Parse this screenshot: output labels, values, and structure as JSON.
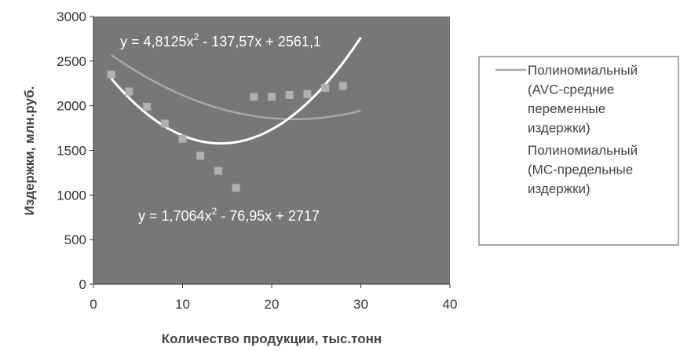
{
  "chart_data": {
    "type": "scatter",
    "title": "",
    "xlabel": "Количество продукции, тыс.тонн",
    "ylabel": "Издержки, млн.руб.",
    "xlim": [
      0,
      40
    ],
    "ylim": [
      0,
      3000
    ],
    "x_ticks": [
      "0",
      "10",
      "20",
      "30",
      "40"
    ],
    "y_ticks": [
      "0",
      "500",
      "1000",
      "1500",
      "2000",
      "2500",
      "3000"
    ],
    "grid": false,
    "plot_background": "#777777",
    "scatter_series": [
      {
        "color": "#b0b0b0",
        "points": [
          {
            "x": 2,
            "y": 2350
          },
          {
            "x": 4,
            "y": 2160
          },
          {
            "x": 6,
            "y": 1990
          },
          {
            "x": 8,
            "y": 1800
          },
          {
            "x": 10,
            "y": 1630
          },
          {
            "x": 12,
            "y": 1440
          },
          {
            "x": 14,
            "y": 1270
          },
          {
            "x": 16,
            "y": 1080
          },
          {
            "x": 18,
            "y": 2100
          },
          {
            "x": 20,
            "y": 2100
          },
          {
            "x": 22,
            "y": 2120
          },
          {
            "x": 24,
            "y": 2130
          },
          {
            "x": 26,
            "y": 2200
          },
          {
            "x": 28,
            "y": 2220
          }
        ]
      }
    ],
    "trendlines": [
      {
        "name": "Полиномиальный (AVC-средние переменные издержки)",
        "color": "#a8a8a8",
        "coefficients": {
          "a": 1.7064,
          "b": -76.95,
          "c": 2717
        },
        "x_range": [
          2,
          30
        ],
        "equation": "y = 1,7064x² - 76,95x + 2717"
      },
      {
        "name": "Полиномиальный (MC-предельные издержки)",
        "color": "#ffffff",
        "coefficients": {
          "a": 4.8125,
          "b": -137.57,
          "c": 2561.1
        },
        "x_range": [
          2,
          30
        ],
        "equation": "y = 4,8125x² - 137,57x + 2561,1"
      }
    ],
    "legend": {
      "position": "right",
      "entries": [
        {
          "lines": [
            "Полиномиальный",
            "(AVC-средние",
            "переменные",
            "издержки)"
          ],
          "color": "#a8a8a8"
        },
        {
          "lines": [
            "Полиномиальный",
            "(MC-предельные",
            "издержки)"
          ],
          "color": "#ffffff"
        }
      ]
    }
  }
}
